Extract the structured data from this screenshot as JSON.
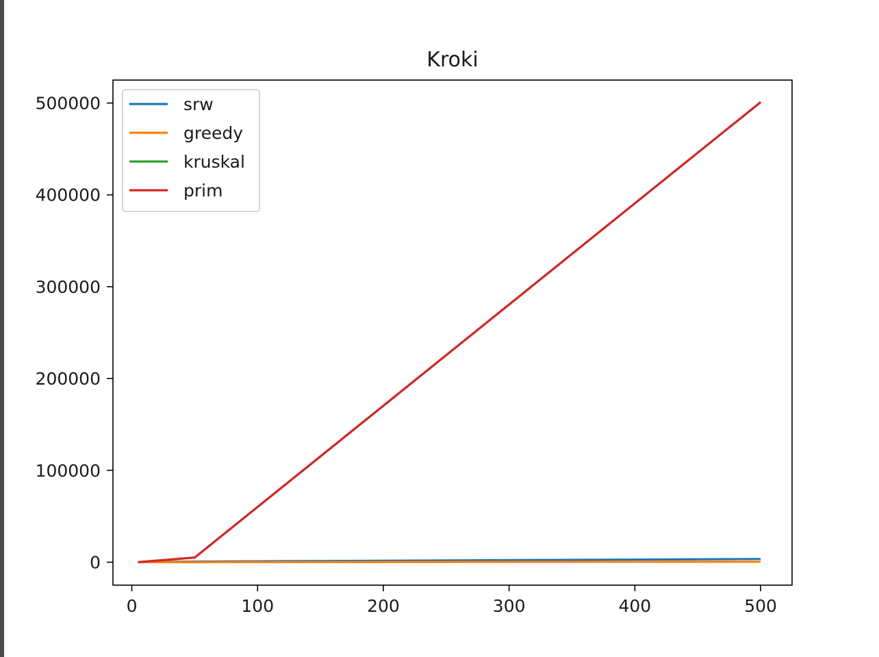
{
  "chart_data": {
    "type": "line",
    "title": "Kroki",
    "xlabel": "",
    "ylabel": "",
    "xlim": [
      -15,
      525
    ],
    "ylim": [
      -25000,
      525000
    ],
    "x_ticks": [
      0,
      100,
      200,
      300,
      400,
      500
    ],
    "y_ticks": [
      0,
      100000,
      200000,
      300000,
      400000,
      500000
    ],
    "legend_position": "upper-left",
    "grid": false,
    "x": [
      5,
      50,
      500
    ],
    "series": [
      {
        "name": "srw",
        "color": "#1f77b4",
        "values": [
          10,
          650,
          3500
        ]
      },
      {
        "name": "greedy",
        "color": "#ff7f0e",
        "values": [
          5,
          50,
          500
        ]
      },
      {
        "name": "kruskal",
        "color": "#2ca02c",
        "values": [
          15,
          5000,
          501000
        ]
      },
      {
        "name": "prim",
        "color": "#d62728",
        "values": [
          15,
          5000,
          501000
        ]
      }
    ]
  }
}
